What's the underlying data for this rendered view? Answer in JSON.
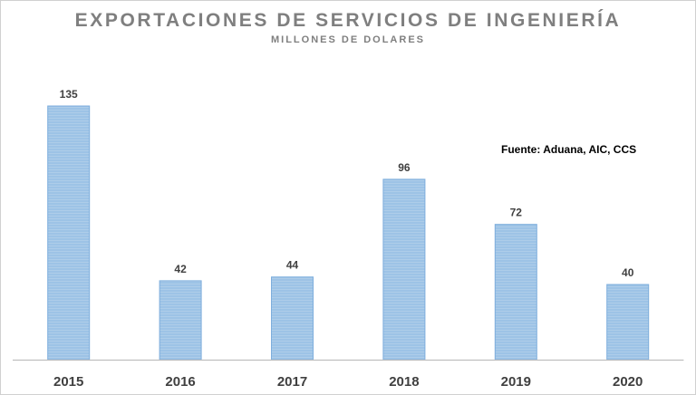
{
  "chart_data": {
    "type": "bar",
    "title": "EXPORTACIONES DE SERVICIOS DE INGENIERÍA",
    "subtitle": "MILLONES DE DOLARES",
    "annotation": "Fuente: Aduana, AIC, CCS",
    "categories": [
      "2015",
      "2016",
      "2017",
      "2018",
      "2019",
      "2020"
    ],
    "values": [
      135,
      42,
      44,
      96,
      72,
      40
    ],
    "ylim": [
      0,
      135
    ],
    "grid": false,
    "data_labels": true,
    "bar_color": "#9dc3e6",
    "bar_edge_color": "#7eaedd",
    "text_color": "#404040"
  }
}
